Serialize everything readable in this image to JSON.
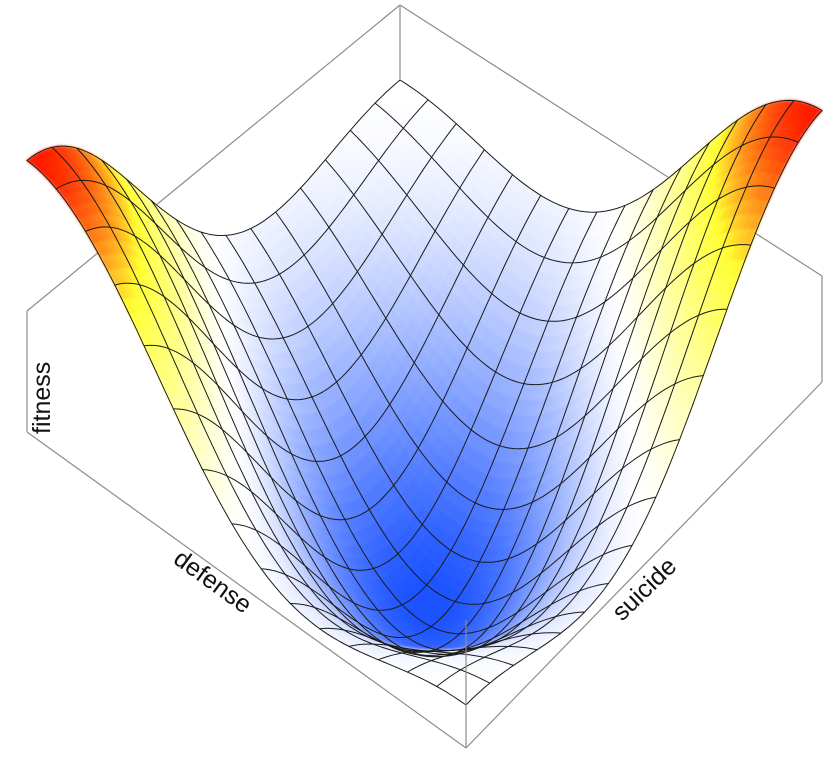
{
  "chart_data": {
    "type": "surface",
    "title": "",
    "xlabel": "defense",
    "ylabel": "suicide",
    "zlabel": "fitness",
    "xlim": [
      0,
      1
    ],
    "ylim": [
      0,
      1
    ],
    "zlim": [
      -1,
      1
    ],
    "grid": false,
    "mesh_lines": 15,
    "colormap": {
      "low": "#1a52ff",
      "mid": "#ffffff",
      "high_1": "#ffff33",
      "high_2": "#ff1a00"
    },
    "surface_description": "fitness = 0.9*cos(pi*(defense + suicide)) * 0.5*(1 + cos(pi*(defense - suicide)))",
    "samples": [
      {
        "defense": 0.0,
        "suicide": 0.0,
        "fitness": 0.9
      },
      {
        "defense": 1.0,
        "suicide": 1.0,
        "fitness": 0.9
      },
      {
        "defense": 0.5,
        "suicide": 0.5,
        "fitness": -0.9
      },
      {
        "defense": 1.0,
        "suicide": 0.0,
        "fitness": 0.0
      },
      {
        "defense": 0.0,
        "suicide": 1.0,
        "fitness": 0.0
      }
    ]
  }
}
